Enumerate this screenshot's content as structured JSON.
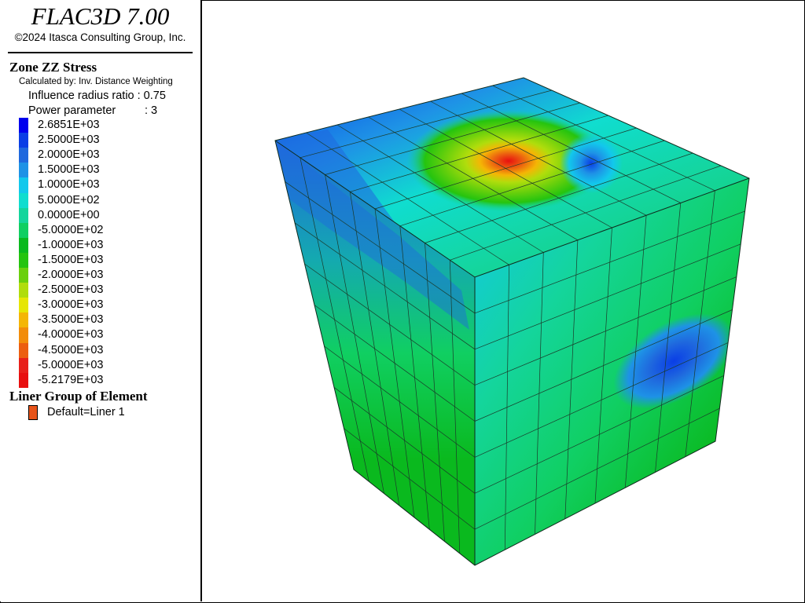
{
  "app": {
    "title": "FLAC3D 7.00",
    "copyright": "©2024 Itasca Consulting Group, Inc."
  },
  "legend": {
    "plot_title": "Zone ZZ Stress",
    "calc_method": "Calculated by: Inv. Distance Weighting",
    "influence_label": "Influence radius ratio :",
    "influence_value": "0.75",
    "power_label": "Power parameter",
    "power_value": ": 3",
    "levels": [
      {
        "label": "2.6851E+03",
        "color": "#0000ee"
      },
      {
        "label": "2.5000E+03",
        "color": "#0a3ee6"
      },
      {
        "label": "2.0000E+03",
        "color": "#1f68de"
      },
      {
        "label": "1.5000E+03",
        "color": "#1e92e6"
      },
      {
        "label": "1.0000E+03",
        "color": "#12c8ec"
      },
      {
        "label": "5.0000E+02",
        "color": "#10ddcf"
      },
      {
        "label": "0.0000E+00",
        "color": "#14d59c"
      },
      {
        "label": "-5.0000E+02",
        "color": "#10cf62"
      },
      {
        "label": "-1.0000E+03",
        "color": "#0ab91e"
      },
      {
        "label": "-1.5000E+03",
        "color": "#25c40f"
      },
      {
        "label": "-2.0000E+03",
        "color": "#6ad00c"
      },
      {
        "label": "-2.5000E+03",
        "color": "#b0dd0c"
      },
      {
        "label": "-3.0000E+03",
        "color": "#e6e604"
      },
      {
        "label": "-3.5000E+03",
        "color": "#f4b605"
      },
      {
        "label": "-4.0000E+03",
        "color": "#f28c0a"
      },
      {
        "label": "-4.5000E+03",
        "color": "#ec5e10"
      },
      {
        "label": "-5.0000E+03",
        "color": "#e8201a"
      },
      {
        "label": "-5.2179E+03",
        "color": "#e80f0f"
      }
    ],
    "liner_title": "Liner Group of Element",
    "liner_item": "Default=Liner 1",
    "liner_color": "#e8541a"
  }
}
